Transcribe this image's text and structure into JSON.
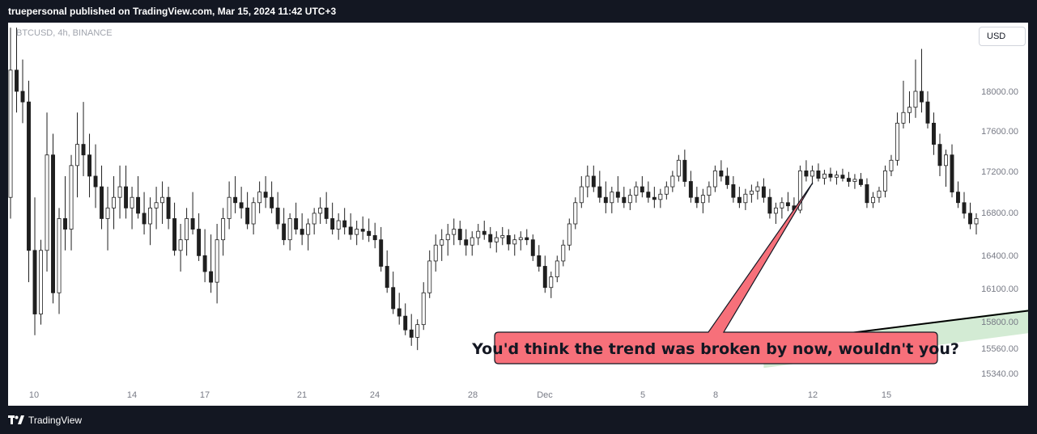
{
  "header": {
    "publisher": "truepersonal published on TradingView.com, Mar 15, 2024 11:42 UTC+3"
  },
  "symbol_label": "BTCUSD, 4h, BINANCE",
  "currency_button": "USD",
  "brand": "TradingView",
  "annotation": {
    "text": "You'd think the trend was broken by now, wouldn't you?"
  },
  "colors": {
    "up": "#1f1f1f",
    "down": "#1f1f1f",
    "trendline": "#000000",
    "channel_fill": "#c8e6c9",
    "callout_fill": "#f7707a",
    "callout_border": "#131722",
    "background": "#ffffff",
    "frame": "#131722"
  },
  "chart_data": {
    "type": "candlestick",
    "symbol": "BTCUSD",
    "interval": "4h",
    "exchange": "BINANCE",
    "y_ticks": [
      {
        "label": "18000.00",
        "value": 18000
      },
      {
        "label": "17600.00",
        "value": 17600
      },
      {
        "label": "17200.00",
        "value": 17200
      },
      {
        "label": "16800.00",
        "value": 16800
      },
      {
        "label": "16400.00",
        "value": 16400
      },
      {
        "label": "16100.00",
        "value": 16100
      },
      {
        "label": "15800.00",
        "value": 15800
      },
      {
        "label": "15560.00",
        "value": 15560
      },
      {
        "label": "15340.00",
        "value": 15340
      }
    ],
    "x_ticks": [
      "10",
      "14",
      "17",
      "21",
      "24",
      "28",
      "Dec",
      "5",
      "8",
      "12",
      "15"
    ],
    "trendline": {
      "from": {
        "bar": 124,
        "price": 15620
      },
      "to": {
        "bar": 330,
        "price": 17090
      }
    },
    "candles": [
      [
        17000,
        18600,
        16800,
        18200
      ],
      [
        18200,
        18600,
        17800,
        18000
      ],
      [
        18000,
        18300,
        17700,
        17900
      ],
      [
        17900,
        18100,
        16200,
        16500
      ],
      [
        16500,
        17000,
        15700,
        15900
      ],
      [
        15900,
        16600,
        15800,
        16500
      ],
      [
        16500,
        17800,
        16300,
        17400
      ],
      [
        17400,
        17600,
        16000,
        16100
      ],
      [
        16100,
        16900,
        15900,
        16800
      ],
      [
        16800,
        17200,
        16500,
        16700
      ],
      [
        16700,
        17400,
        16500,
        17300
      ],
      [
        17300,
        17800,
        17000,
        17500
      ],
      [
        17500,
        17900,
        17200,
        17400
      ],
      [
        17400,
        17600,
        17000,
        17200
      ],
      [
        17200,
        17500,
        16900,
        17100
      ],
      [
        17100,
        17300,
        16700,
        16800
      ],
      [
        16800,
        17100,
        16500,
        16900
      ],
      [
        16900,
        17200,
        16700,
        17000
      ],
      [
        17000,
        17300,
        16800,
        17100
      ],
      [
        17100,
        17300,
        16800,
        16900
      ],
      [
        16900,
        17100,
        16700,
        17000
      ],
      [
        17000,
        17200,
        16800,
        16850
      ],
      [
        16850,
        17050,
        16650,
        16750
      ],
      [
        16750,
        17000,
        16550,
        16900
      ],
      [
        16900,
        17100,
        16700,
        16950
      ],
      [
        16950,
        17150,
        16750,
        17000
      ],
      [
        17000,
        17100,
        16700,
        16800
      ],
      [
        16800,
        16950,
        16450,
        16500
      ],
      [
        16500,
        16750,
        16300,
        16600
      ],
      [
        16600,
        16900,
        16450,
        16800
      ],
      [
        16800,
        17050,
        16650,
        16700
      ],
      [
        16700,
        16850,
        16400,
        16450
      ],
      [
        16450,
        16700,
        16200,
        16300
      ],
      [
        16300,
        16650,
        16100,
        16200
      ],
      [
        16200,
        16750,
        16000,
        16600
      ],
      [
        16600,
        16900,
        16450,
        16800
      ],
      [
        16800,
        17150,
        16700,
        17000
      ],
      [
        17000,
        17200,
        16850,
        16950
      ],
      [
        16950,
        17100,
        16800,
        16900
      ],
      [
        16900,
        17050,
        16700,
        16750
      ],
      [
        16750,
        17000,
        16650,
        16950
      ],
      [
        16950,
        17150,
        16850,
        17050
      ],
      [
        17050,
        17200,
        16900,
        17000
      ],
      [
        17000,
        17150,
        16850,
        16900
      ],
      [
        16900,
        17050,
        16700,
        16750
      ],
      [
        16750,
        16900,
        16550,
        16600
      ],
      [
        16600,
        16850,
        16500,
        16800
      ],
      [
        16800,
        16950,
        16650,
        16700
      ],
      [
        16700,
        16850,
        16550,
        16650
      ],
      [
        16650,
        16800,
        16500,
        16750
      ],
      [
        16750,
        16900,
        16650,
        16850
      ],
      [
        16850,
        17000,
        16750,
        16900
      ],
      [
        16900,
        17050,
        16750,
        16800
      ],
      [
        16800,
        16950,
        16650,
        16700
      ],
      [
        16700,
        16850,
        16600,
        16780
      ],
      [
        16780,
        16900,
        16650,
        16720
      ],
      [
        16720,
        16850,
        16600,
        16650
      ],
      [
        16650,
        16780,
        16550,
        16700
      ],
      [
        16700,
        16820,
        16600,
        16680
      ],
      [
        16680,
        16800,
        16580,
        16640
      ],
      [
        16640,
        16760,
        16520,
        16600
      ],
      [
        16600,
        16720,
        16300,
        16350
      ],
      [
        16350,
        16500,
        16100,
        16150
      ],
      [
        16150,
        16300,
        15900,
        15950
      ],
      [
        15950,
        16100,
        15800,
        15880
      ],
      [
        15880,
        16000,
        15700,
        15750
      ],
      [
        15750,
        15900,
        15600,
        15680
      ],
      [
        15680,
        15850,
        15560,
        15800
      ],
      [
        15800,
        16200,
        15750,
        16100
      ],
      [
        16100,
        16500,
        16050,
        16400
      ],
      [
        16400,
        16650,
        16300,
        16550
      ],
      [
        16550,
        16700,
        16400,
        16600
      ],
      [
        16600,
        16750,
        16450,
        16650
      ],
      [
        16650,
        16800,
        16550,
        16700
      ],
      [
        16700,
        16780,
        16550,
        16600
      ],
      [
        16600,
        16700,
        16450,
        16550
      ],
      [
        16550,
        16680,
        16450,
        16620
      ],
      [
        16620,
        16750,
        16550,
        16680
      ],
      [
        16680,
        16780,
        16600,
        16650
      ],
      [
        16650,
        16720,
        16520,
        16580
      ],
      [
        16580,
        16680,
        16480,
        16620
      ],
      [
        16620,
        16720,
        16550,
        16640
      ],
      [
        16640,
        16700,
        16500,
        16560
      ],
      [
        16560,
        16650,
        16450,
        16600
      ],
      [
        16600,
        16680,
        16500,
        16620
      ],
      [
        16620,
        16700,
        16550,
        16600
      ],
      [
        16600,
        16650,
        16400,
        16450
      ],
      [
        16450,
        16550,
        16300,
        16350
      ],
      [
        16350,
        16450,
        16100,
        16150
      ],
      [
        16150,
        16300,
        16050,
        16250
      ],
      [
        16250,
        16450,
        16200,
        16400
      ],
      [
        16400,
        16600,
        16350,
        16550
      ],
      [
        16550,
        16800,
        16500,
        16750
      ],
      [
        16750,
        17000,
        16700,
        16950
      ],
      [
        16950,
        17200,
        16900,
        17100
      ],
      [
        17100,
        17300,
        17000,
        17200
      ],
      [
        17200,
        17300,
        17050,
        17100
      ],
      [
        17100,
        17250,
        16950,
        17000
      ],
      [
        17000,
        17150,
        16850,
        16950
      ],
      [
        16950,
        17100,
        16850,
        17050
      ],
      [
        17050,
        17200,
        16950,
        17000
      ],
      [
        17000,
        17100,
        16900,
        16950
      ],
      [
        16950,
        17080,
        16880,
        17020
      ],
      [
        17020,
        17150,
        16950,
        17100
      ],
      [
        17100,
        17200,
        17000,
        17050
      ],
      [
        17050,
        17150,
        16950,
        17000
      ],
      [
        17000,
        17100,
        16900,
        16980
      ],
      [
        16980,
        17080,
        16900,
        17030
      ],
      [
        17030,
        17150,
        16980,
        17100
      ],
      [
        17100,
        17250,
        17050,
        17200
      ],
      [
        17200,
        17400,
        17150,
        17350
      ],
      [
        17350,
        17450,
        17100,
        17150
      ],
      [
        17150,
        17250,
        16950,
        17000
      ],
      [
        17000,
        17100,
        16900,
        16950
      ],
      [
        16950,
        17080,
        16850,
        17020
      ],
      [
        17020,
        17150,
        16950,
        17100
      ],
      [
        17100,
        17300,
        17050,
        17250
      ],
      [
        17250,
        17350,
        17150,
        17200
      ],
      [
        17200,
        17280,
        17080,
        17120
      ],
      [
        17120,
        17200,
        16950,
        17000
      ],
      [
        17000,
        17100,
        16900,
        16950
      ],
      [
        16950,
        17080,
        16880,
        17030
      ],
      [
        17030,
        17120,
        16950,
        17060
      ],
      [
        17060,
        17150,
        16980,
        17100
      ],
      [
        17100,
        17180,
        16950,
        17000
      ],
      [
        17000,
        17080,
        16800,
        16850
      ],
      [
        16850,
        16950,
        16750,
        16900
      ],
      [
        16900,
        17000,
        16800,
        16950
      ],
      [
        16950,
        17050,
        16870,
        16920
      ],
      [
        16920,
        17000,
        16850,
        16880
      ],
      [
        16880,
        17300,
        16850,
        17250
      ],
      [
        17250,
        17350,
        17150,
        17200
      ],
      [
        17200,
        17300,
        17120,
        17250
      ],
      [
        17250,
        17320,
        17150,
        17180
      ],
      [
        17180,
        17260,
        17120,
        17220
      ],
      [
        17220,
        17280,
        17150,
        17190
      ],
      [
        17190,
        17250,
        17120,
        17210
      ],
      [
        17210,
        17270,
        17150,
        17180
      ],
      [
        17180,
        17240,
        17100,
        17150
      ],
      [
        17150,
        17220,
        17080,
        17170
      ],
      [
        17170,
        17230,
        17100,
        17120
      ],
      [
        17120,
        17180,
        16900,
        16950
      ],
      [
        16950,
        17050,
        16900,
        17000
      ],
      [
        17000,
        17100,
        16950,
        17060
      ],
      [
        17060,
        17300,
        17000,
        17250
      ],
      [
        17250,
        17400,
        17200,
        17350
      ],
      [
        17350,
        17800,
        17300,
        17700
      ],
      [
        17700,
        18100,
        17650,
        17800
      ],
      [
        17800,
        18000,
        17700,
        17850
      ],
      [
        17850,
        18300,
        17750,
        18000
      ],
      [
        18000,
        18400,
        17800,
        17900
      ],
      [
        17900,
        18000,
        17650,
        17700
      ],
      [
        17700,
        17800,
        17400,
        17500
      ],
      [
        17500,
        17600,
        17200,
        17300
      ],
      [
        17300,
        17450,
        17100,
        17400
      ],
      [
        17400,
        17500,
        17000,
        17050
      ],
      [
        17050,
        17150,
        16900,
        16950
      ],
      [
        16950,
        17050,
        16800,
        16850
      ],
      [
        16850,
        16950,
        16700,
        16750
      ],
      [
        16750,
        16850,
        16650,
        16800
      ]
    ]
  }
}
